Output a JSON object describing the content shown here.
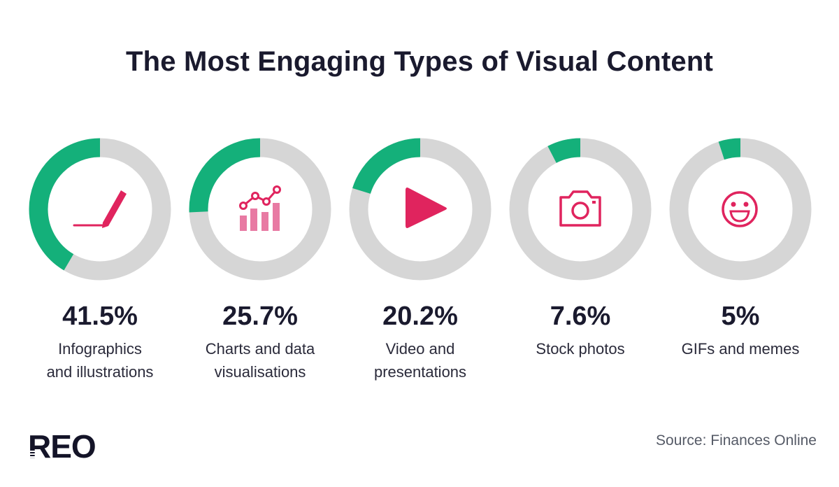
{
  "title": "The Most Engaging Types of Visual Content",
  "source": "Source: Finances Online",
  "logo": "REO",
  "colors": {
    "filled": "#14b07a",
    "track": "#d6d6d6",
    "icon": "#e0245e"
  },
  "chart_data": {
    "type": "pie",
    "title": "The Most Engaging Types of Visual Content",
    "unit": "%",
    "items": [
      {
        "label": "Infographics\nand illustrations",
        "value": 41.5,
        "display": "41.5%",
        "icon": "pen-icon"
      },
      {
        "label": "Charts and data\nvisualisations",
        "value": 25.7,
        "display": "25.7%",
        "icon": "chart-icon"
      },
      {
        "label": "Video and\npresentations",
        "value": 20.2,
        "display": "20.2%",
        "icon": "play-icon"
      },
      {
        "label": "Stock photos",
        "value": 7.6,
        "display": "7.6%",
        "icon": "camera-icon"
      },
      {
        "label": "GIFs and memes",
        "value": 5,
        "display": "5%",
        "icon": "smiley-icon"
      }
    ]
  }
}
